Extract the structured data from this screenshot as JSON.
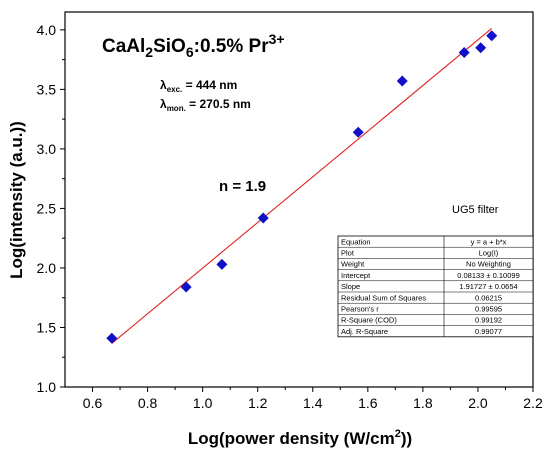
{
  "chart_data": {
    "type": "scatter",
    "title": {
      "main": "CaAl",
      "s1": "2",
      "mid": "SiO",
      "s2": "6",
      "tail": ":0.5% Pr",
      "sup": "3+"
    },
    "xlabel": {
      "main": "Log(power density (W/cm",
      "sup": "2",
      "tail": "))"
    },
    "ylabel": "Log(intensity (a.u.))",
    "xlim": [
      0.5,
      2.2
    ],
    "ylim": [
      1.0,
      4.15
    ],
    "xticks": [
      "0.6",
      "0.8",
      "1.0",
      "1.2",
      "1.4",
      "1.6",
      "1.8",
      "2.0",
      "2.2"
    ],
    "yticks": [
      "1.0",
      "1.5",
      "2.0",
      "2.5",
      "3.0",
      "3.5",
      "4.0"
    ],
    "points": [
      {
        "x": 0.67,
        "y": 1.41
      },
      {
        "x": 0.94,
        "y": 1.84
      },
      {
        "x": 1.07,
        "y": 2.03
      },
      {
        "x": 1.22,
        "y": 2.42
      },
      {
        "x": 1.565,
        "y": 3.14
      },
      {
        "x": 1.725,
        "y": 3.57
      },
      {
        "x": 1.95,
        "y": 3.81
      },
      {
        "x": 2.01,
        "y": 3.85
      },
      {
        "x": 2.05,
        "y": 3.95
      }
    ],
    "fit": {
      "intercept": 0.08133,
      "slope": 1.91727,
      "x_range": [
        0.67,
        2.05
      ]
    },
    "point_color": "#1010c8",
    "fit_color": "#e02020",
    "excitation": {
      "symbol": "λ",
      "sub": "exc.",
      "value": " = 444 nm"
    },
    "monitor": {
      "symbol": "λ",
      "sub": "mon.",
      "value": " = 270.5 nm"
    },
    "n_label": "n = 1.9",
    "filter_label": "UG5 filter",
    "stats_table": [
      [
        "Equation",
        "y = a + b*x"
      ],
      [
        "Plot",
        "Log(I)"
      ],
      [
        "Weight",
        "No Weighting"
      ],
      [
        "Intercept",
        "0.08133 ± 0.10099"
      ],
      [
        "Slope",
        "1.91727 ± 0.0654"
      ],
      [
        "Residual Sum of Squares",
        "0.06215"
      ],
      [
        "Pearson's r",
        "0.99595"
      ],
      [
        "R-Square (COD)",
        "0.99192"
      ],
      [
        "Adj. R-Square",
        "0.99077"
      ]
    ]
  }
}
